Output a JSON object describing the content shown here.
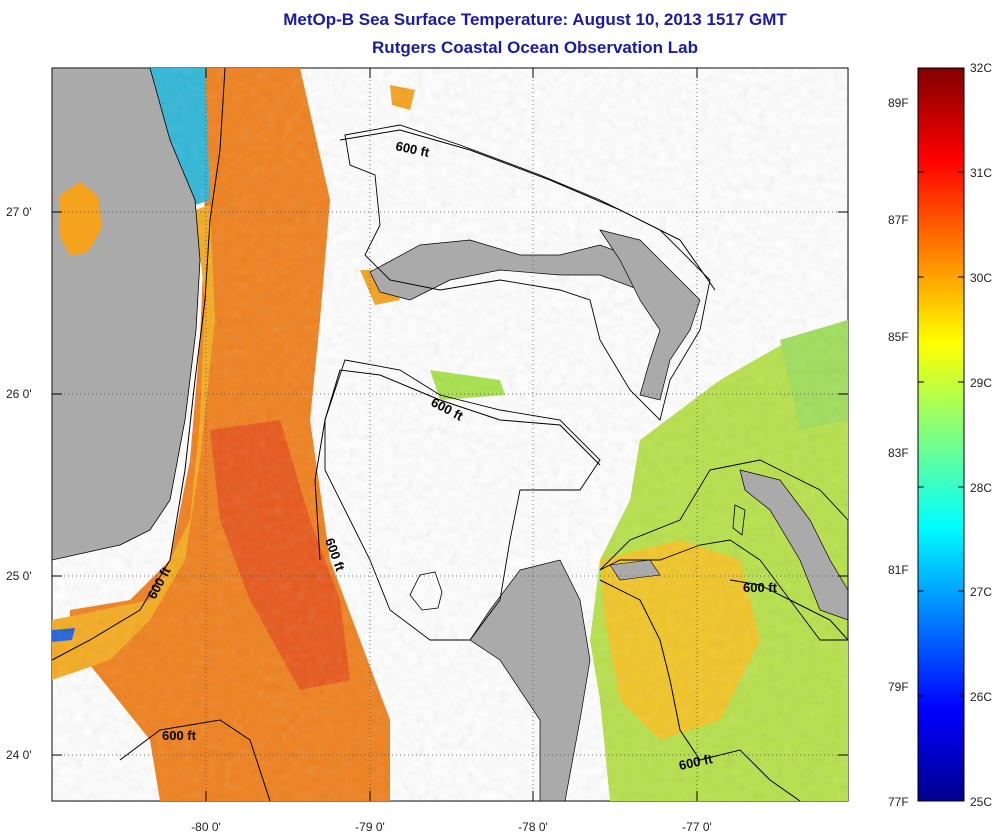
{
  "title": {
    "line1": "MetOp-B Sea Surface Temperature:  August 10, 2013 1517 GMT",
    "line2": "Rutgers Coastal Ocean Observation Lab"
  },
  "map": {
    "lat_ticks": [
      "27 0'",
      "26 0'",
      "25 0'",
      "24 0'"
    ],
    "lon_ticks": [
      "-80 0'",
      "-79 0'",
      "-78 0'",
      "-77 0'"
    ],
    "contour_label": "600 ft",
    "colors": {
      "land": "#aaaaaa",
      "no_data": "#ffffff",
      "gulf_stream": "#f07a18",
      "shelf_warm": "#f5b51a",
      "east_mixed": "#a8e24a",
      "coastal_cool": "#22c8d8"
    }
  },
  "colorbar": {
    "celsius": [
      "32C",
      "31C",
      "30C",
      "29C",
      "28C",
      "27C",
      "26C",
      "25C"
    ],
    "fahrenheit": [
      "89F",
      "87F",
      "85F",
      "83F",
      "81F",
      "79F",
      "77F"
    ],
    "range_c": [
      25,
      32
    ]
  }
}
